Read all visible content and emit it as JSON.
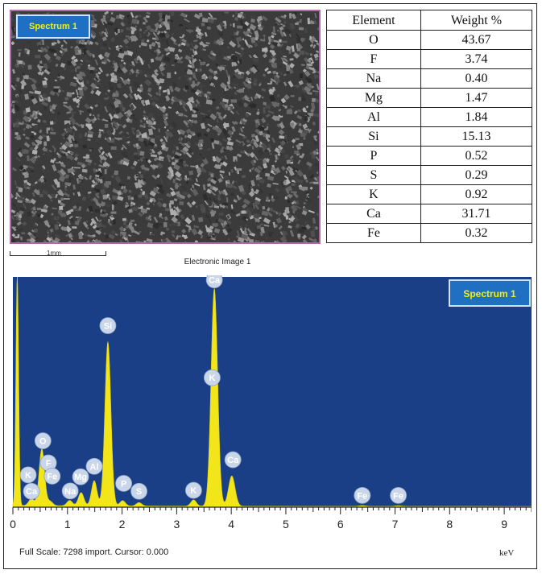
{
  "sem_panel": {
    "badge": "Spectrum 1",
    "scale_label": "1mm",
    "caption": "Electronic Image 1"
  },
  "table": {
    "headers": [
      "Element",
      "Weight %"
    ],
    "rows": [
      [
        "O",
        "43.67"
      ],
      [
        "F",
        "3.74"
      ],
      [
        "Na",
        "0.40"
      ],
      [
        "Mg",
        "1.47"
      ],
      [
        "Al",
        "1.84"
      ],
      [
        "Si",
        "15.13"
      ],
      [
        "P",
        "0.52"
      ],
      [
        "S",
        "0.29"
      ],
      [
        "K",
        "0.92"
      ],
      [
        "Ca",
        "31.71"
      ],
      [
        "Fe",
        "0.32"
      ]
    ]
  },
  "spectrum": {
    "badge": "Spectrum 1",
    "full_scale_text": "Full Scale: 7298 import. Cursor: 0.000",
    "x_unit": "keV"
  },
  "colors": {
    "plot_bg": "#1a3f86",
    "peak_fill": "#f2e61a",
    "label_circle": "#c9d6ea",
    "badge_bg": "#1f6fc2",
    "badge_text": "#f6f000"
  },
  "chart_data": {
    "type": "area",
    "xlabel": "keV",
    "xlim": [
      0,
      9.5
    ],
    "xticks": [
      0,
      1,
      2,
      3,
      4,
      5,
      6,
      7,
      8,
      9
    ],
    "ylim": [
      0,
      7298
    ],
    "peaks": [
      {
        "x": 0.08,
        "height": 7298,
        "width": 0.025
      },
      {
        "x": 0.34,
        "height": 220,
        "width": 0.05
      },
      {
        "x": 0.53,
        "height": 1800,
        "width": 0.05
      },
      {
        "x": 0.68,
        "height": 140,
        "width": 0.05
      },
      {
        "x": 1.04,
        "height": 170,
        "width": 0.05
      },
      {
        "x": 1.25,
        "height": 420,
        "width": 0.05
      },
      {
        "x": 1.49,
        "height": 800,
        "width": 0.05
      },
      {
        "x": 1.74,
        "height": 5200,
        "width": 0.055
      },
      {
        "x": 2.01,
        "height": 170,
        "width": 0.05
      },
      {
        "x": 2.31,
        "height": 110,
        "width": 0.05
      },
      {
        "x": 3.31,
        "height": 200,
        "width": 0.05
      },
      {
        "x": 3.69,
        "height": 6900,
        "width": 0.06
      },
      {
        "x": 4.01,
        "height": 960,
        "width": 0.06
      },
      {
        "x": 6.4,
        "height": 25,
        "width": 0.06
      },
      {
        "x": 7.06,
        "height": 20,
        "width": 0.06
      }
    ],
    "labels": [
      {
        "text": "Ca",
        "x": 0.34,
        "y": 300
      },
      {
        "text": "K",
        "x": 0.28,
        "y": 820
      },
      {
        "text": "O",
        "x": 0.55,
        "y": 1900
      },
      {
        "text": "F",
        "x": 0.65,
        "y": 1200
      },
      {
        "text": "Fe",
        "x": 0.72,
        "y": 780
      },
      {
        "text": "Na",
        "x": 1.05,
        "y": 310
      },
      {
        "text": "Mg",
        "x": 1.24,
        "y": 760
      },
      {
        "text": "Al",
        "x": 1.49,
        "y": 1090
      },
      {
        "text": "Si",
        "x": 1.74,
        "y": 5550
      },
      {
        "text": "P",
        "x": 2.03,
        "y": 550
      },
      {
        "text": "S",
        "x": 2.31,
        "y": 300
      },
      {
        "text": "K",
        "x": 3.31,
        "y": 330
      },
      {
        "text": "K",
        "x": 3.65,
        "y": 3900
      },
      {
        "text": "Ca",
        "x": 3.69,
        "y": 7000
      },
      {
        "text": "Ca",
        "x": 4.03,
        "y": 1300
      },
      {
        "text": "Fe",
        "x": 6.4,
        "y": 170
      },
      {
        "text": "Fe",
        "x": 7.06,
        "y": 170
      }
    ]
  }
}
